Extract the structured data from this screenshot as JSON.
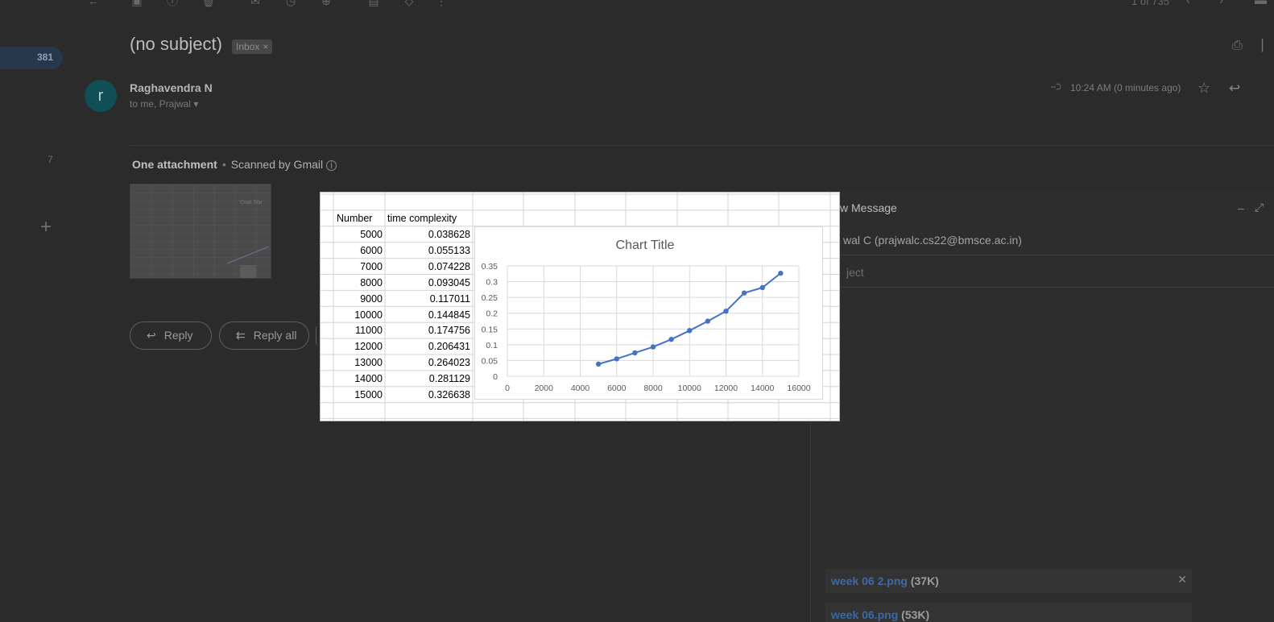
{
  "toolbar": {
    "icons": [
      "back-icon",
      "archive-icon",
      "report-icon",
      "delete-icon",
      "mark-unread-icon",
      "snooze-icon",
      "add-task-icon",
      "move-icon",
      "label-icon",
      "more-icon"
    ],
    "pager_text": "1 of 735"
  },
  "rail": {
    "inbox_count": "381",
    "other_count": "7",
    "plus": "+"
  },
  "email": {
    "subject": "(no subject)",
    "label_chip": "Inbox",
    "label_chip_close": "×",
    "sender_initial": "r",
    "sender_name": "Raghavendra N",
    "recipients": "to me, Prajwal",
    "time": "10:24 AM (0 minutes ago)",
    "attachments_heading": "One attachment",
    "scanned_text": "Scanned by Gmail",
    "reply_label": "Reply",
    "reply_all_label": "Reply all"
  },
  "compose": {
    "title": "New Message",
    "title_visible": "w Message",
    "to_visible": "wal C (prajwalc.cs22@bmsce.ac.in)",
    "subject_placeholder_visible": "ject",
    "attachments": [
      {
        "name": "week 06 2.png",
        "size": "(37K)"
      },
      {
        "name": "week 06.png",
        "size": "(53K)"
      }
    ]
  },
  "spreadsheet": {
    "header": [
      "Number",
      "time complexity"
    ],
    "rows": [
      [
        "5000",
        "0.038628"
      ],
      [
        "6000",
        "0.055133"
      ],
      [
        "7000",
        "0.074228"
      ],
      [
        "8000",
        "0.093045"
      ],
      [
        "9000",
        "0.117011"
      ],
      [
        "10000",
        "0.144845"
      ],
      [
        "11000",
        "0.174756"
      ],
      [
        "12000",
        "0.206431"
      ],
      [
        "13000",
        "0.264023"
      ],
      [
        "14000",
        "0.281129"
      ],
      [
        "15000",
        "0.326638"
      ]
    ]
  },
  "chart_data": {
    "type": "scatter",
    "title": "Chart Title",
    "xlabel": "",
    "ylabel": "",
    "xlim": [
      0,
      16000
    ],
    "ylim": [
      0,
      0.35
    ],
    "x_ticks": [
      "0",
      "2000",
      "4000",
      "6000",
      "8000",
      "10000",
      "12000",
      "14000",
      "16000"
    ],
    "y_ticks": [
      "0",
      "0.05",
      "0.1",
      "0.15",
      "0.2",
      "0.25",
      "0.3",
      "0.35"
    ],
    "grid": true,
    "line_color": "#4472c4",
    "series": [
      {
        "x": [
          5000,
          6000,
          7000,
          8000,
          9000,
          10000,
          11000,
          12000,
          13000,
          14000,
          15000
        ],
        "y": [
          0.038628,
          0.055133,
          0.074228,
          0.093045,
          0.117011,
          0.144845,
          0.174756,
          0.206431,
          0.264023,
          0.281129,
          0.326638
        ]
      }
    ]
  }
}
